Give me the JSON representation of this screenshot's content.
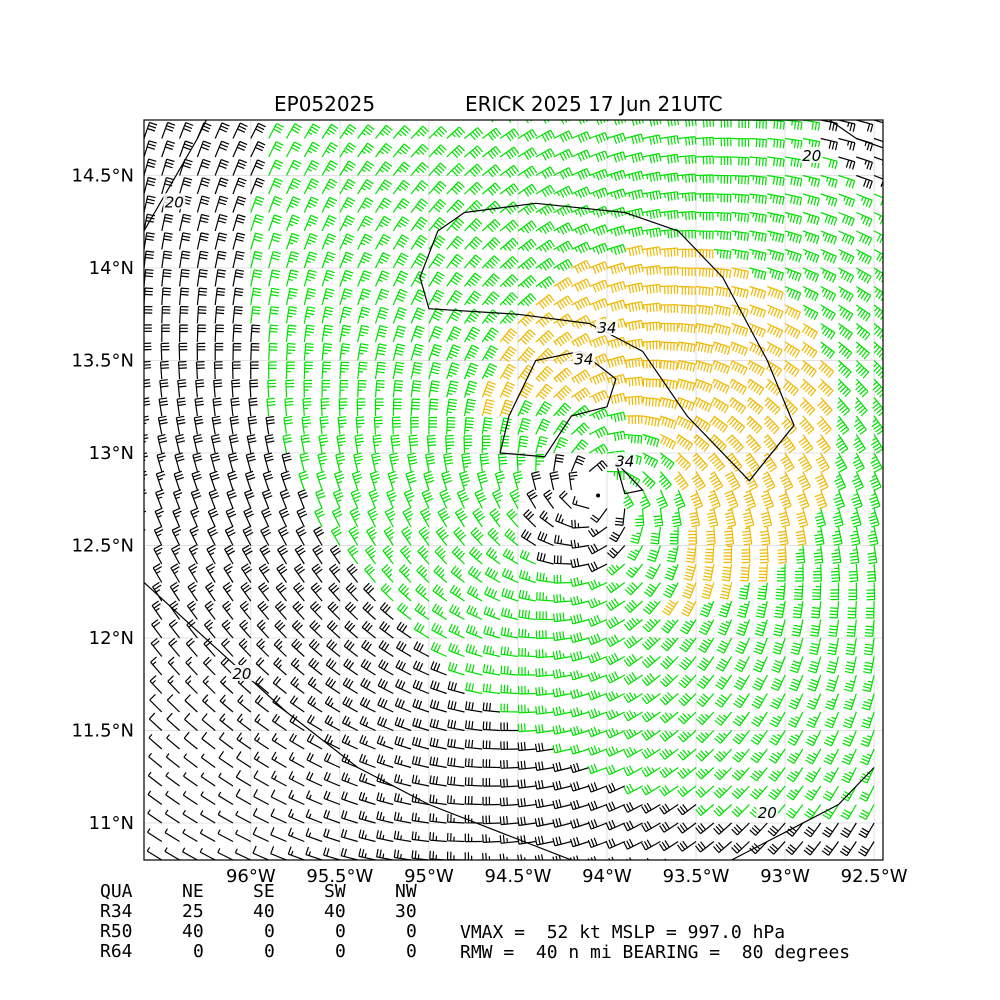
{
  "header": {
    "storm_id": "EP052025",
    "storm_title": "ERICK 2025 17 Jun 21UTC"
  },
  "chart_data": {
    "type": "wind-barb-map",
    "title_left": "EP052025",
    "title_right": "ERICK 2025 17 Jun 21UTC",
    "xlim": [
      -96.6,
      -92.45
    ],
    "ylim": [
      10.8,
      14.8
    ],
    "x_ticks": [
      {
        "value": -96.0,
        "label": "96°W"
      },
      {
        "value": -95.5,
        "label": "95.5°W"
      },
      {
        "value": -95.0,
        "label": "95°W"
      },
      {
        "value": -94.5,
        "label": "94.5°W"
      },
      {
        "value": -94.0,
        "label": "94°W"
      },
      {
        "value": -93.5,
        "label": "93.5°W"
      },
      {
        "value": -93.0,
        "label": "93°W"
      },
      {
        "value": -92.5,
        "label": "92.5°W"
      }
    ],
    "y_ticks": [
      {
        "value": 14.5,
        "label": "14.5°N"
      },
      {
        "value": 14.0,
        "label": "14°N"
      },
      {
        "value": 13.5,
        "label": "13.5°N"
      },
      {
        "value": 13.0,
        "label": "13°N"
      },
      {
        "value": 12.5,
        "label": "12.5°N"
      },
      {
        "value": 12.0,
        "label": "12°N"
      },
      {
        "value": 11.5,
        "label": "11.5°N"
      },
      {
        "value": 11.0,
        "label": "11°N"
      }
    ],
    "grid": true,
    "center": {
      "lon": -94.05,
      "lat": 12.77
    },
    "contour_labels": [
      {
        "text": "34",
        "lon": -94.0,
        "lat": 13.67
      },
      {
        "text": "34",
        "lon": -94.13,
        "lat": 13.5
      },
      {
        "text": "34",
        "lon": -93.9,
        "lat": 12.95
      },
      {
        "text": "20",
        "lon": -96.43,
        "lat": 14.35
      },
      {
        "text": "20",
        "lon": -92.85,
        "lat": 14.6
      },
      {
        "text": "20",
        "lon": -96.05,
        "lat": 11.8
      },
      {
        "text": "20",
        "lon": -93.1,
        "lat": 11.05
      }
    ],
    "barb_colors": {
      "below_34": "#000000",
      "34_to_50": "#00e000",
      "50_to_64": "#f0b800",
      "above_64": "#ff6000"
    }
  },
  "wind_radii": {
    "headers": [
      "QUA",
      "NE",
      "SE",
      "SW",
      "NW"
    ],
    "rows": [
      {
        "label": "R34",
        "values": [
          "25",
          "40",
          "40",
          "30"
        ]
      },
      {
        "label": "R50",
        "values": [
          "40",
          "0",
          "0",
          "0"
        ]
      },
      {
        "label": "R64",
        "values": [
          "0",
          "0",
          "0",
          "0"
        ]
      }
    ]
  },
  "storm_info": {
    "line1": "VMAX =  52 kt MSLP = 997.0 hPa",
    "line2": "RMW =  40 n mi BEARING =  80 degrees"
  }
}
